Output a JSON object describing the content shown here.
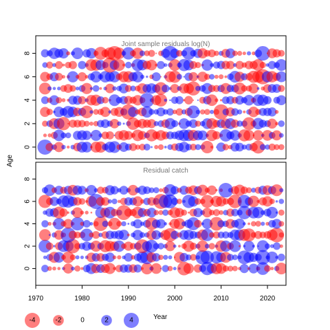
{
  "chart_data": {
    "type": "scatter",
    "subtype": "bubble-residual-plot",
    "ylabel": "Age",
    "xlabel": "Year",
    "shared_x_axis": true,
    "xlim": [
      1970,
      2024
    ],
    "x_ticks": [
      1970,
      1980,
      1990,
      2000,
      2010,
      2020
    ],
    "y_ticks": [
      0,
      2,
      4,
      6,
      8
    ],
    "colors": {
      "negative": "#ff0000",
      "positive": "#0000ff",
      "opacity": 0.5
    },
    "size_meaning": "bubble area proportional to absolute residual",
    "panels": [
      {
        "title": "Joint sample residuals log(N)",
        "years": [
          1972,
          2023
        ],
        "ages": [
          0,
          8
        ],
        "ylim": [
          -1,
          9.5
        ],
        "residuals_note": "individual residual values not legible; dense alternating positive/negative pattern for every year and age"
      },
      {
        "title": "Residual catch",
        "years": [
          1972,
          2023
        ],
        "ages": [
          0,
          7
        ],
        "ylim": [
          -1.5,
          9.5
        ],
        "residuals_note": "individual residual values not legible; dense alternating positive/negative pattern for every year and age"
      }
    ],
    "legend": {
      "placement": "bottom-left",
      "entries": [
        {
          "label": "-4",
          "value": -4
        },
        {
          "label": "-2",
          "value": -2
        },
        {
          "label": "0",
          "value": 0
        },
        {
          "label": "2",
          "value": 2
        },
        {
          "label": "4",
          "value": 4
        }
      ],
      "title": "Year"
    }
  }
}
